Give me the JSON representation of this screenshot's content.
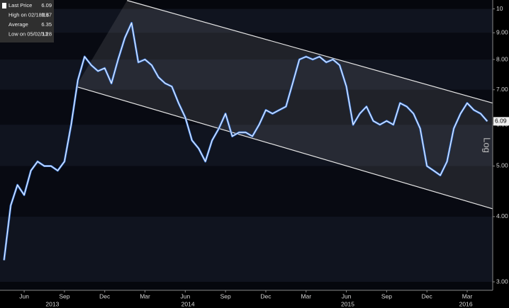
{
  "chart_data": {
    "type": "line",
    "legend": [
      {
        "label": "Last Price",
        "value": 6.09
      },
      {
        "label": "High on 02/18/14",
        "value": 9.57
      },
      {
        "label": "Average",
        "value": 6.35
      },
      {
        "label": "Low on 05/02/13",
        "value": 3.28
      }
    ],
    "scale_label": "Log",
    "log_scale": true,
    "x": [
      3.5,
      4,
      4.5,
      5,
      5.5,
      6,
      6.5,
      7,
      7.5,
      8,
      8.5,
      9,
      9.5,
      10,
      10.5,
      11,
      11.5,
      12,
      12.5,
      13,
      13.5,
      14,
      14.5,
      15,
      15.5,
      16,
      16.5,
      17,
      17.5,
      18,
      18.5,
      19,
      19.5,
      20,
      20.5,
      21,
      21.5,
      22,
      22.5,
      23,
      23.5,
      24,
      24.5,
      25,
      25.5,
      26,
      26.5,
      27,
      27.5,
      28,
      28.5,
      29,
      29.5,
      30,
      30.5,
      31,
      31.5,
      32,
      32.5,
      33,
      33.5,
      34,
      34.5,
      35,
      35.5,
      36,
      36.5,
      37,
      37.5,
      38,
      38.5,
      39,
      39.5
    ],
    "series": [
      {
        "color": "#f2f6ff",
        "values": [
          3.3,
          4.2,
          4.6,
          4.4,
          4.9,
          5.1,
          5.0,
          5.0,
          4.9,
          5.1,
          6.0,
          7.3,
          8.1,
          7.8,
          7.6,
          7.7,
          7.2,
          8.0,
          8.8,
          9.4,
          7.9,
          8.0,
          7.8,
          7.4,
          7.2,
          7.1,
          6.6,
          6.2,
          5.6,
          5.4,
          5.1,
          5.6,
          5.9,
          6.3,
          5.7,
          5.8,
          5.8,
          5.7,
          6.0,
          6.4,
          6.3,
          6.4,
          6.5,
          7.2,
          8.0,
          8.1,
          8.0,
          8.1,
          7.9,
          8.0,
          7.8,
          7.1,
          6.0,
          6.3,
          6.5,
          6.1,
          6.0,
          6.1,
          6.0,
          6.6,
          6.5,
          6.3,
          5.9,
          5.0,
          4.9,
          4.8,
          5.1,
          5.9,
          6.3,
          6.6,
          6.4,
          6.3,
          6.09
        ]
      }
    ],
    "trendlines": [
      {
        "color": "#e6e6e6",
        "x": [
          12.67,
          39.9
        ],
        "y": [
          10.38,
          6.6
        ]
      },
      {
        "color": "#e6e6e6",
        "x": [
          8.86,
          39.9
        ],
        "y": [
          7.1,
          4.14
        ]
      }
    ],
    "xlim": [
      3.2,
      39.9
    ],
    "xticks": [
      {
        "value": 5,
        "label": "Jun"
      },
      {
        "value": 8,
        "label": "Sep"
      },
      {
        "value": 11,
        "label": "Dec"
      },
      {
        "value": 14,
        "label": "Mar"
      },
      {
        "value": 17,
        "label": "Jun"
      },
      {
        "value": 20,
        "label": "Sep"
      },
      {
        "value": 23,
        "label": "Dec"
      },
      {
        "value": 26,
        "label": "Mar"
      },
      {
        "value": 29,
        "label": "Jun"
      },
      {
        "value": 32,
        "label": "Sep"
      },
      {
        "value": 35,
        "label": "Dec"
      },
      {
        "value": 38,
        "label": "Mar"
      }
    ],
    "year_ticks": [
      {
        "value": 7.1,
        "label": "2013"
      },
      {
        "value": 17.2,
        "label": "2014"
      },
      {
        "value": 29.1,
        "label": "2015"
      },
      {
        "value": 37.9,
        "label": "2016"
      }
    ],
    "ylim": [
      2.89,
      10.4
    ],
    "yticks": [
      {
        "value": 3,
        "label": "3.00"
      },
      {
        "value": 4,
        "label": "4.00"
      },
      {
        "value": 5,
        "label": "5.00"
      },
      {
        "value": 6,
        "label": "6.00"
      },
      {
        "value": 7,
        "label": "7.00"
      },
      {
        "value": 8,
        "label": "8.00"
      },
      {
        "value": 9,
        "label": "9.00"
      },
      10
    ]
  }
}
